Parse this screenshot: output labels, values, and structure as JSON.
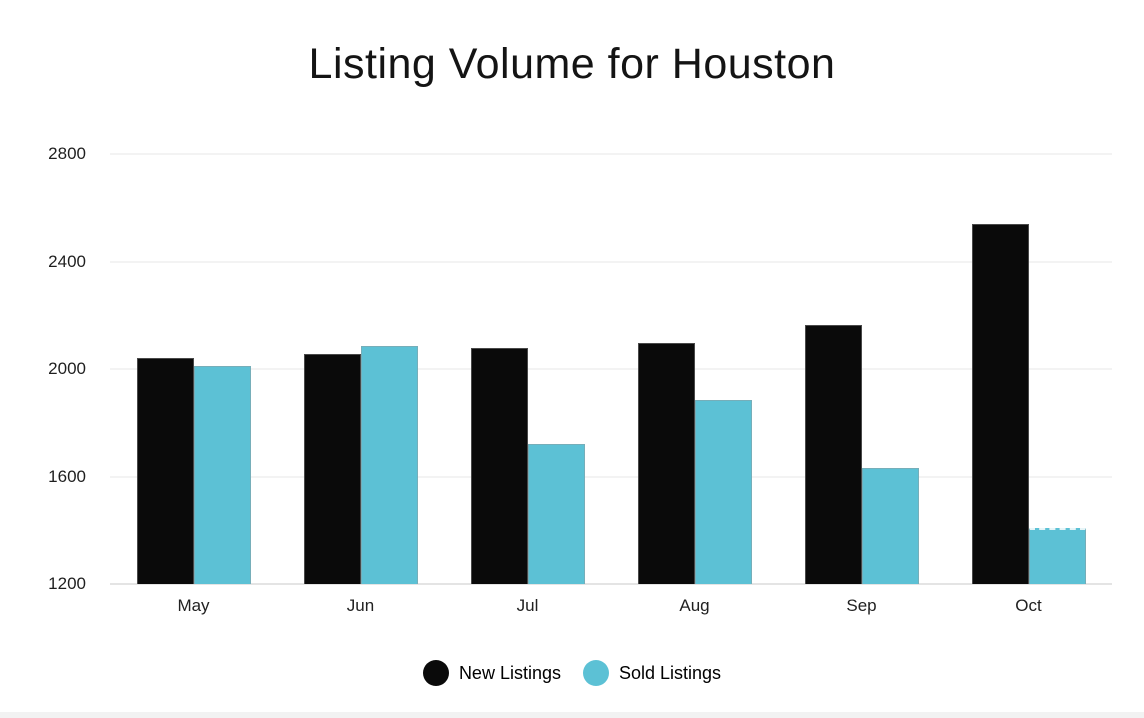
{
  "title": "Listing Volume for Houston",
  "colors": {
    "new_listings": "#0a0a0a",
    "sold_listings": "#5cc1d5",
    "gridline": "#f3f3f3",
    "baseline": "#e4e4e4"
  },
  "chart_data": {
    "type": "bar",
    "title": "Listing Volume for Houston",
    "categories": [
      "May",
      "Jun",
      "Jul",
      "Aug",
      "Sep",
      "Oct"
    ],
    "series": [
      {
        "name": "New Listings",
        "color": "#0a0a0a",
        "values": [
          2040,
          2055,
          2080,
          2095,
          2165,
          2540
        ]
      },
      {
        "name": "Sold Listings",
        "color": "#5cc1d5",
        "values": [
          2010,
          2085,
          1720,
          1885,
          1630,
          1410
        ],
        "last_bar_dashed_top": true
      }
    ],
    "xlabel": "",
    "ylabel": "",
    "ylim": [
      1200,
      2800
    ],
    "yticks": [
      1200,
      1600,
      2000,
      2400,
      2800
    ],
    "grid": true,
    "legend_position": "bottom"
  },
  "legend": {
    "items": [
      {
        "label": "New Listings",
        "color": "#0a0a0a"
      },
      {
        "label": "Sold Listings",
        "color": "#5cc1d5"
      }
    ]
  }
}
